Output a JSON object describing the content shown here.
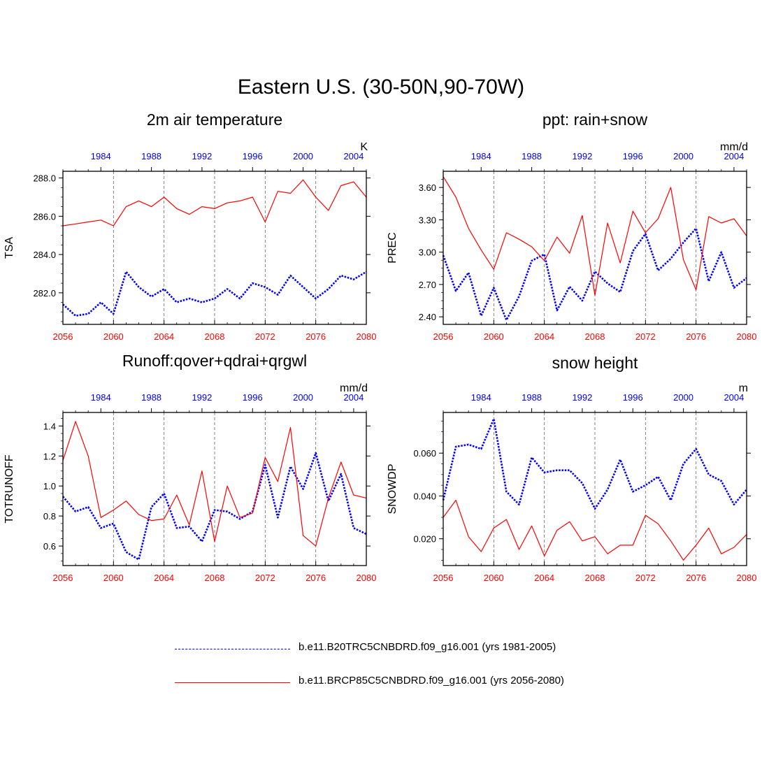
{
  "main_title": "Eastern U.S. (30-50N,90-70W)",
  "legend": [
    {
      "label": "b.e11.B20TRC5CNBDRD.f09_g16.001 (yrs 1981-2005)",
      "color": "#0000ff",
      "style": "dashed"
    },
    {
      "label": "b.e11.BRCP85C5CNBDRD.f09_g16.001 (yrs 2056-2080)",
      "color": "#ff0000",
      "style": "solid"
    }
  ],
  "colors": {
    "historical": "#0000ff",
    "future": "#ff0000",
    "axis": "#000000",
    "grid": "#666666"
  },
  "chart_data": [
    {
      "type": "line",
      "title": "2m air temperature",
      "ylabel": "TSA",
      "units": "K",
      "ylim": [
        280.35,
        288.35
      ],
      "yticks": [
        282.0,
        284.0,
        286.0,
        288.0
      ],
      "ytick_labels": [
        "282.0",
        "284.0",
        "286.0",
        "288.0"
      ],
      "xlim": [
        2056,
        2080
      ],
      "xticks": [
        2056,
        2060,
        2064,
        2068,
        2072,
        2076,
        2080
      ],
      "xtick_labels": [
        "2056",
        "2060",
        "2064",
        "2068",
        "2072",
        "2076",
        "2080"
      ],
      "top_xticks": [
        2059,
        2063,
        2067,
        2071,
        2075,
        2079
      ],
      "top_xtick_labels": [
        "1984",
        "1988",
        "1992",
        "1996",
        "2000",
        "2004"
      ],
      "grid": "dashed vertical at bottom major ticks",
      "series": [
        {
          "name": "b.e11.B20TRC5CNBDRD.f09_g16.001 (yrs 1981-2005)",
          "color": "#0000ff",
          "style": "dotted",
          "x": [
            2056,
            2057,
            2058,
            2059,
            2060,
            2061,
            2062,
            2063,
            2064,
            2065,
            2066,
            2067,
            2068,
            2069,
            2070,
            2071,
            2072,
            2073,
            2074,
            2075,
            2076,
            2077,
            2078,
            2079,
            2080
          ],
          "values": [
            281.4,
            280.8,
            280.9,
            281.5,
            280.9,
            283.1,
            282.3,
            281.8,
            282.2,
            281.5,
            281.7,
            281.5,
            281.7,
            282.2,
            281.7,
            282.5,
            282.3,
            281.9,
            282.9,
            282.3,
            281.7,
            282.2,
            282.9,
            282.7,
            283.1
          ]
        },
        {
          "name": "b.e11.BRCP85C5CNBDRD.f09_g16.001 (yrs 2056-2080)",
          "color": "#ff0000",
          "style": "solid",
          "x": [
            2056,
            2057,
            2058,
            2059,
            2060,
            2061,
            2062,
            2063,
            2064,
            2065,
            2066,
            2067,
            2068,
            2069,
            2070,
            2071,
            2072,
            2073,
            2074,
            2075,
            2076,
            2077,
            2078,
            2079,
            2080
          ],
          "values": [
            285.5,
            285.6,
            285.7,
            285.8,
            285.5,
            286.5,
            286.8,
            286.5,
            287.0,
            286.4,
            286.1,
            286.5,
            286.4,
            286.7,
            286.8,
            287.0,
            285.7,
            287.3,
            287.2,
            287.9,
            287.0,
            286.3,
            287.6,
            287.8,
            287.0
          ]
        }
      ]
    },
    {
      "type": "line",
      "title": "ppt: rain+snow",
      "ylabel": "PREC",
      "units": "mm/d",
      "ylim": [
        2.33,
        3.75
      ],
      "yticks": [
        2.4,
        2.7,
        3.0,
        3.3,
        3.6
      ],
      "ytick_labels": [
        "2.40",
        "2.70",
        "3.00",
        "3.30",
        "3.60"
      ],
      "xlim": [
        2056,
        2080
      ],
      "xticks": [
        2056,
        2060,
        2064,
        2068,
        2072,
        2076,
        2080
      ],
      "xtick_labels": [
        "2056",
        "2060",
        "2064",
        "2068",
        "2072",
        "2076",
        "2080"
      ],
      "top_xticks": [
        2059,
        2063,
        2067,
        2071,
        2075,
        2079
      ],
      "top_xtick_labels": [
        "1984",
        "1988",
        "1992",
        "1996",
        "2000",
        "2004"
      ],
      "grid": "dashed vertical at bottom major ticks",
      "series": [
        {
          "name": "b.e11.B20TRC5CNBDRD.f09_g16.001 (yrs 1981-2005)",
          "color": "#0000ff",
          "style": "dotted",
          "x": [
            2056,
            2057,
            2058,
            2059,
            2060,
            2061,
            2062,
            2063,
            2064,
            2065,
            2066,
            2067,
            2068,
            2069,
            2070,
            2071,
            2072,
            2073,
            2074,
            2075,
            2076,
            2077,
            2078,
            2079,
            2080
          ],
          "values": [
            2.97,
            2.64,
            2.81,
            2.41,
            2.67,
            2.37,
            2.59,
            2.92,
            2.98,
            2.46,
            2.68,
            2.55,
            2.82,
            2.71,
            2.63,
            3.01,
            3.17,
            2.83,
            2.94,
            3.09,
            3.22,
            2.73,
            3.0,
            2.67,
            2.76
          ]
        },
        {
          "name": "b.e11.BRCP85C5CNBDRD.f09_g16.001 (yrs 2056-2080)",
          "color": "#ff0000",
          "style": "solid",
          "x": [
            2056,
            2057,
            2058,
            2059,
            2060,
            2061,
            2062,
            2063,
            2064,
            2065,
            2066,
            2067,
            2068,
            2069,
            2070,
            2071,
            2072,
            2073,
            2074,
            2075,
            2076,
            2077,
            2078,
            2079,
            2080
          ],
          "values": [
            3.7,
            3.51,
            3.22,
            3.02,
            2.84,
            3.18,
            3.12,
            3.05,
            2.92,
            3.14,
            2.99,
            3.34,
            2.6,
            3.27,
            2.9,
            3.38,
            3.18,
            3.31,
            3.6,
            2.93,
            2.65,
            3.33,
            3.27,
            3.31,
            3.15
          ]
        }
      ]
    },
    {
      "type": "line",
      "title": "Runoff:qover+qdrai+qrgwl",
      "ylabel": "TOTRUNOFF",
      "units": "mm/d",
      "ylim": [
        0.47,
        1.49
      ],
      "yticks": [
        0.6,
        0.8,
        1.0,
        1.2,
        1.4
      ],
      "ytick_labels": [
        "0.6",
        "0.8",
        "1.0",
        "1.2",
        "1.4"
      ],
      "xlim": [
        2056,
        2080
      ],
      "xticks": [
        2056,
        2060,
        2064,
        2068,
        2072,
        2076,
        2080
      ],
      "xtick_labels": [
        "2056",
        "2060",
        "2064",
        "2068",
        "2072",
        "2076",
        "2080"
      ],
      "top_xticks": [
        2059,
        2063,
        2067,
        2071,
        2075,
        2079
      ],
      "top_xtick_labels": [
        "1984",
        "1988",
        "1992",
        "1996",
        "2000",
        "2004"
      ],
      "grid": "dashed vertical at bottom major ticks",
      "series": [
        {
          "name": "b.e11.B20TRC5CNBDRD.f09_g16.001 (yrs 1981-2005)",
          "color": "#0000ff",
          "style": "dotted",
          "x": [
            2056,
            2057,
            2058,
            2059,
            2060,
            2061,
            2062,
            2063,
            2064,
            2065,
            2066,
            2067,
            2068,
            2069,
            2070,
            2071,
            2072,
            2073,
            2074,
            2075,
            2076,
            2077,
            2078,
            2079,
            2080
          ],
          "values": [
            0.93,
            0.83,
            0.86,
            0.72,
            0.75,
            0.56,
            0.51,
            0.86,
            0.95,
            0.72,
            0.73,
            0.63,
            0.84,
            0.83,
            0.78,
            0.83,
            1.14,
            0.79,
            1.13,
            0.98,
            1.22,
            0.9,
            1.08,
            0.72,
            0.68
          ]
        },
        {
          "name": "b.e11.BRCP85C5CNBDRD.f09_g16.001 (yrs 2056-2080)",
          "color": "#ff0000",
          "style": "solid",
          "x": [
            2056,
            2057,
            2058,
            2059,
            2060,
            2061,
            2062,
            2063,
            2064,
            2065,
            2066,
            2067,
            2068,
            2069,
            2070,
            2071,
            2072,
            2073,
            2074,
            2075,
            2076,
            2077,
            2078,
            2079,
            2080
          ],
          "values": [
            1.17,
            1.43,
            1.2,
            0.79,
            0.84,
            0.9,
            0.81,
            0.77,
            0.78,
            0.94,
            0.74,
            1.1,
            0.63,
            1.0,
            0.79,
            0.82,
            1.19,
            1.03,
            1.39,
            0.67,
            0.6,
            0.92,
            1.16,
            0.94,
            0.92
          ]
        }
      ]
    },
    {
      "type": "line",
      "title": "snow height",
      "ylabel": "SNOWDP",
      "units": "m",
      "ylim": [
        0.0075,
        0.079
      ],
      "yticks": [
        0.02,
        0.04,
        0.06
      ],
      "ytick_labels": [
        "0.020",
        "0.040",
        "0.060"
      ],
      "xlim": [
        2056,
        2080
      ],
      "xticks": [
        2056,
        2060,
        2064,
        2068,
        2072,
        2076,
        2080
      ],
      "xtick_labels": [
        "2056",
        "2060",
        "2064",
        "2068",
        "2072",
        "2076",
        "2080"
      ],
      "top_xticks": [
        2059,
        2063,
        2067,
        2071,
        2075,
        2079
      ],
      "top_xtick_labels": [
        "1984",
        "1988",
        "1992",
        "1996",
        "2000",
        "2004"
      ],
      "grid": "dashed vertical at bottom major ticks",
      "series": [
        {
          "name": "b.e11.B20TRC5CNBDRD.f09_g16.001 (yrs 1981-2005)",
          "color": "#0000ff",
          "style": "dotted",
          "x": [
            2056,
            2057,
            2058,
            2059,
            2060,
            2061,
            2062,
            2063,
            2064,
            2065,
            2066,
            2067,
            2068,
            2069,
            2070,
            2071,
            2072,
            2073,
            2074,
            2075,
            2076,
            2077,
            2078,
            2079,
            2080
          ],
          "values": [
            0.038,
            0.063,
            0.064,
            0.062,
            0.076,
            0.042,
            0.036,
            0.058,
            0.051,
            0.052,
            0.052,
            0.046,
            0.034,
            0.043,
            0.057,
            0.042,
            0.045,
            0.049,
            0.038,
            0.055,
            0.062,
            0.05,
            0.047,
            0.036,
            0.043
          ]
        },
        {
          "name": "b.e11.BRCP85C5CNBDRD.f09_g16.001 (yrs 2056-2080)",
          "color": "#ff0000",
          "style": "solid",
          "x": [
            2056,
            2057,
            2058,
            2059,
            2060,
            2061,
            2062,
            2063,
            2064,
            2065,
            2066,
            2067,
            2068,
            2069,
            2070,
            2071,
            2072,
            2073,
            2074,
            2075,
            2076,
            2077,
            2078,
            2079,
            2080
          ],
          "values": [
            0.03,
            0.038,
            0.021,
            0.014,
            0.025,
            0.029,
            0.015,
            0.026,
            0.012,
            0.024,
            0.028,
            0.019,
            0.021,
            0.013,
            0.017,
            0.017,
            0.031,
            0.027,
            0.019,
            0.01,
            0.017,
            0.025,
            0.013,
            0.016,
            0.022
          ]
        }
      ]
    }
  ]
}
